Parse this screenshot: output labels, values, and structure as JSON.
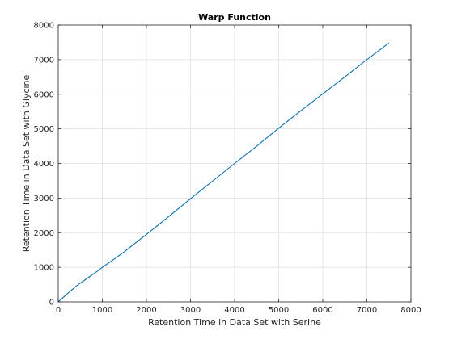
{
  "chart_data": {
    "type": "line",
    "title": "Warp Function",
    "xlabel": "Retention Time in Data Set with Serine",
    "ylabel": "Retention Time in Data Set with Glycine",
    "xlim": [
      0,
      8000
    ],
    "ylim": [
      0,
      8000
    ],
    "xticks": [
      0,
      1000,
      2000,
      3000,
      4000,
      5000,
      6000,
      7000,
      8000
    ],
    "yticks": [
      0,
      1000,
      2000,
      3000,
      4000,
      5000,
      6000,
      7000,
      8000
    ],
    "grid": true,
    "series": [
      {
        "color": "#0072bd",
        "x": [
          0,
          100,
          200,
          300,
          400,
          500,
          600,
          700,
          800,
          900,
          1000,
          1250,
          1500,
          1750,
          2000,
          2500,
          3000,
          3500,
          4000,
          4500,
          5000,
          5500,
          6000,
          6500,
          7000,
          7500
        ],
        "y": [
          0,
          115,
          230,
          340,
          450,
          540,
          630,
          720,
          810,
          900,
          1000,
          1220,
          1450,
          1700,
          1950,
          2460,
          2980,
          3490,
          4000,
          4500,
          5020,
          5520,
          6010,
          6500,
          7000,
          7480
        ]
      }
    ]
  }
}
